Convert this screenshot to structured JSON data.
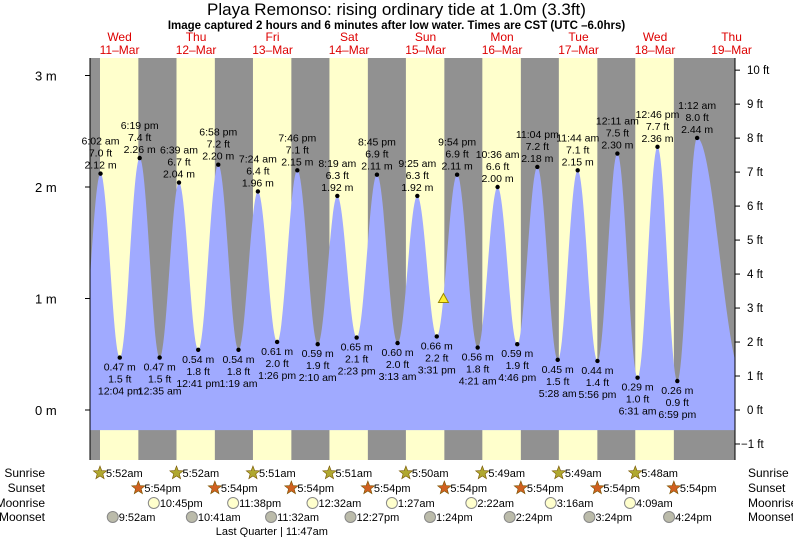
{
  "title": "Playa Remonso: rising  ordinary tide at 1.0m (3.3ft)",
  "subtitle": "Image captured 2 hours and 6 minutes after low water. Times are CST (UTC –6.0hrs)",
  "colors": {
    "night": "#919191",
    "day": "#ffffcc",
    "water": "#a0aaff",
    "daylabel": "#dd0000",
    "sunrise": "#b0a830",
    "sunset": "#d06020",
    "moonrise": "#ffffcc",
    "moonset": "#bbbbaa"
  },
  "chart_data": {
    "type": "area",
    "title": "Playa Remonso: rising  ordinary tide at 1.0m (3.3ft)",
    "ylabel_left": "m",
    "ylabel_right": "ft",
    "ylim_m": [
      -0.18,
      2.95
    ],
    "y_ticks_m": [
      "0 m",
      "1 m",
      "2 m",
      "3 m"
    ],
    "y_ticks_ft": [
      "−1 ft",
      "0 ft",
      "1 ft",
      "2 ft",
      "3 ft",
      "4 ft",
      "5 ft",
      "6 ft",
      "7 ft",
      "8 ft",
      "9 ft",
      "10 ft"
    ],
    "days": [
      {
        "dow": "Wed",
        "date": "11–Mar"
      },
      {
        "dow": "Thu",
        "date": "12–Mar"
      },
      {
        "dow": "Fri",
        "date": "13–Mar"
      },
      {
        "dow": "Sat",
        "date": "14–Mar"
      },
      {
        "dow": "Sun",
        "date": "15–Mar"
      },
      {
        "dow": "Mon",
        "date": "16–Mar"
      },
      {
        "dow": "Tue",
        "date": "17–Mar"
      },
      {
        "dow": "Wed",
        "date": "18–Mar"
      },
      {
        "dow": "Thu",
        "date": "19–Mar"
      }
    ],
    "extremes": [
      {
        "type": "high",
        "day": 0,
        "time": "6:02 am",
        "ft": "7.0 ft",
        "m": "2.12 m",
        "value": 2.12
      },
      {
        "type": "low",
        "day": 0,
        "time": "12:04 pm",
        "ft": "1.5 ft",
        "m": "0.47 m",
        "value": 0.47
      },
      {
        "type": "high",
        "day": 0,
        "time": "6:19 pm",
        "ft": "7.4 ft",
        "m": "2.26 m",
        "value": 2.26
      },
      {
        "type": "low",
        "day": 1,
        "time": "12:35 am",
        "ft": "1.5 ft",
        "m": "0.47 m",
        "value": 0.47
      },
      {
        "type": "high",
        "day": 1,
        "time": "6:39 am",
        "ft": "6.7 ft",
        "m": "2.04 m",
        "value": 2.04
      },
      {
        "type": "low",
        "day": 1,
        "time": "12:41 pm",
        "ft": "1.8 ft",
        "m": "0.54 m",
        "value": 0.54
      },
      {
        "type": "high",
        "day": 1,
        "time": "6:58 pm",
        "ft": "7.2 ft",
        "m": "2.20 m",
        "value": 2.2
      },
      {
        "type": "low",
        "day": 2,
        "time": "1:19 am",
        "ft": "1.8 ft",
        "m": "0.54 m",
        "value": 0.54
      },
      {
        "type": "high",
        "day": 2,
        "time": "7:24 am",
        "ft": "6.4 ft",
        "m": "1.96 m",
        "value": 1.96
      },
      {
        "type": "low",
        "day": 2,
        "time": "1:26 pm",
        "ft": "2.0 ft",
        "m": "0.61 m",
        "value": 0.61
      },
      {
        "type": "high",
        "day": 2,
        "time": "7:46 pm",
        "ft": "7.1 ft",
        "m": "2.15 m",
        "value": 2.15
      },
      {
        "type": "low",
        "day": 3,
        "time": "2:10 am",
        "ft": "1.9 ft",
        "m": "0.59 m",
        "value": 0.59
      },
      {
        "type": "high",
        "day": 3,
        "time": "8:19 am",
        "ft": "6.3 ft",
        "m": "1.92 m",
        "value": 1.92
      },
      {
        "type": "low",
        "day": 3,
        "time": "2:23 pm",
        "ft": "2.1 ft",
        "m": "0.65 m",
        "value": 0.65
      },
      {
        "type": "high",
        "day": 3,
        "time": "8:45 pm",
        "ft": "6.9 ft",
        "m": "2.11 m",
        "value": 2.11
      },
      {
        "type": "low",
        "day": 4,
        "time": "3:13 am",
        "ft": "2.0 ft",
        "m": "0.60 m",
        "value": 0.6
      },
      {
        "type": "high",
        "day": 4,
        "time": "9:25 am",
        "ft": "6.3 ft",
        "m": "1.92 m",
        "value": 1.92
      },
      {
        "type": "low",
        "day": 4,
        "time": "3:31 pm",
        "ft": "2.2 ft",
        "m": "0.66 m",
        "value": 0.66
      },
      {
        "type": "high",
        "day": 4,
        "time": "9:54 pm",
        "ft": "6.9 ft",
        "m": "2.11 m",
        "value": 2.11
      },
      {
        "type": "low",
        "day": 5,
        "time": "4:21 am",
        "ft": "1.8 ft",
        "m": "0.56 m",
        "value": 0.56
      },
      {
        "type": "high",
        "day": 5,
        "time": "10:36 am",
        "ft": "6.6 ft",
        "m": "2.00 m",
        "value": 2.0
      },
      {
        "type": "low",
        "day": 5,
        "time": "4:46 pm",
        "ft": "1.9 ft",
        "m": "0.59 m",
        "value": 0.59
      },
      {
        "type": "high",
        "day": 5,
        "time": "11:04 pm",
        "ft": "7.2 ft",
        "m": "2.18 m",
        "value": 2.18
      },
      {
        "type": "low",
        "day": 6,
        "time": "5:28 am",
        "ft": "1.5 ft",
        "m": "0.45 m",
        "value": 0.45
      },
      {
        "type": "high",
        "day": 6,
        "time": "11:44 am",
        "ft": "7.1 ft",
        "m": "2.15 m",
        "value": 2.15
      },
      {
        "type": "low",
        "day": 6,
        "time": "5:56 pm",
        "ft": "1.4 ft",
        "m": "0.44 m",
        "value": 0.44
      },
      {
        "type": "high",
        "day": 7,
        "time": "12:11 am",
        "ft": "7.5 ft",
        "m": "2.30 m",
        "value": 2.3
      },
      {
        "type": "low",
        "day": 7,
        "time": "6:31 am",
        "ft": "1.0 ft",
        "m": "0.29 m",
        "value": 0.29
      },
      {
        "type": "high",
        "day": 7,
        "time": "12:46 pm",
        "ft": "7.7 ft",
        "m": "2.36 m",
        "value": 2.36
      },
      {
        "type": "low",
        "day": 7,
        "time": "6:59 pm",
        "ft": "0.9 ft",
        "m": "0.26 m",
        "value": 0.26
      },
      {
        "type": "high",
        "day": 8,
        "time": "1:12 am",
        "ft": "8.0 ft",
        "m": "2.44 m",
        "value": 2.44
      }
    ],
    "current": {
      "day": 4,
      "time": "5:37 pm",
      "value": 1.0
    }
  },
  "rows": {
    "labels": {
      "sunrise": "Sunrise",
      "sunset": "Sunset",
      "moonrise": "Moonrise",
      "moonset": "Moonset"
    },
    "sunrise": [
      {
        "day": 0,
        "time": "5:52am"
      },
      {
        "day": 1,
        "time": "5:52am"
      },
      {
        "day": 2,
        "time": "5:51am"
      },
      {
        "day": 3,
        "time": "5:51am"
      },
      {
        "day": 4,
        "time": "5:50am"
      },
      {
        "day": 5,
        "time": "5:49am"
      },
      {
        "day": 6,
        "time": "5:49am"
      },
      {
        "day": 7,
        "time": "5:48am"
      }
    ],
    "sunset": [
      {
        "day": 0,
        "time": "5:54pm"
      },
      {
        "day": 1,
        "time": "5:54pm"
      },
      {
        "day": 2,
        "time": "5:54pm"
      },
      {
        "day": 3,
        "time": "5:54pm"
      },
      {
        "day": 4,
        "time": "5:54pm"
      },
      {
        "day": 5,
        "time": "5:54pm"
      },
      {
        "day": 6,
        "time": "5:54pm"
      },
      {
        "day": 7,
        "time": "5:54pm"
      }
    ],
    "moonrise": [
      {
        "day": 0,
        "time": "10:45pm"
      },
      {
        "day": 1,
        "time": "11:38pm"
      },
      {
        "day": 3,
        "time": "12:32am"
      },
      {
        "day": 4,
        "time": "1:27am"
      },
      {
        "day": 5,
        "time": "2:22am"
      },
      {
        "day": 6,
        "time": "3:16am"
      },
      {
        "day": 7,
        "time": "4:09am"
      }
    ],
    "moonset": [
      {
        "day": 0,
        "time": "9:52am"
      },
      {
        "day": 1,
        "time": "10:41am"
      },
      {
        "day": 2,
        "time": "11:32am"
      },
      {
        "day": 3,
        "time": "12:27pm"
      },
      {
        "day": 4,
        "time": "1:24pm"
      },
      {
        "day": 5,
        "time": "2:24pm"
      },
      {
        "day": 6,
        "time": "3:24pm"
      },
      {
        "day": 7,
        "time": "4:24pm"
      }
    ],
    "phase": {
      "day": 2,
      "time": "11:47am",
      "text": "Last Quarter | 11:47am"
    }
  }
}
